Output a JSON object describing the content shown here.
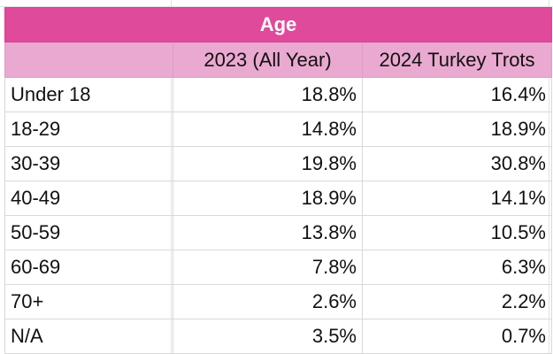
{
  "table": {
    "title": "Age",
    "columns": [
      "",
      "2023 (All Year)",
      "2024 Turkey Trots"
    ],
    "rows": [
      {
        "label": "Under 18",
        "y2023": "18.8%",
        "y2024": "16.4%"
      },
      {
        "label": "18-29",
        "y2023": "14.8%",
        "y2024": "18.9%"
      },
      {
        "label": "30-39",
        "y2023": "19.8%",
        "y2024": "30.8%"
      },
      {
        "label": "40-49",
        "y2023": "18.9%",
        "y2024": "14.1%"
      },
      {
        "label": "50-59",
        "y2023": "13.8%",
        "y2024": "10.5%"
      },
      {
        "label": "60-69",
        "y2023": "7.8%",
        "y2024": "6.3%"
      },
      {
        "label": "70+",
        "y2023": "2.6%",
        "y2024": "2.2%"
      },
      {
        "label": "N/A",
        "y2023": "3.5%",
        "y2024": "0.7%"
      }
    ]
  },
  "colors": {
    "title_bg": "#e04a9b",
    "header_bg": "#eaa9d0",
    "grid": "#d9d9d9"
  }
}
